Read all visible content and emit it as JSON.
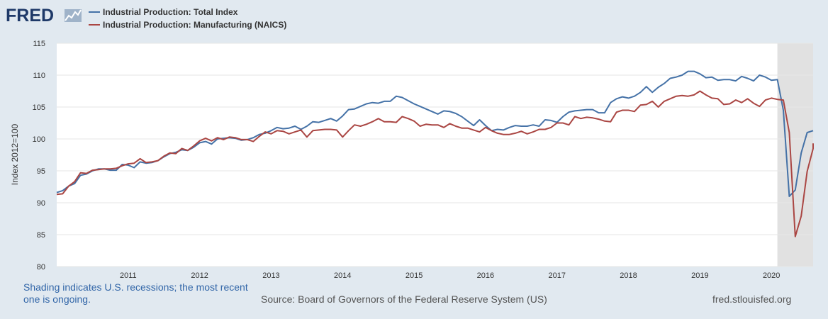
{
  "brand": {
    "name": "FRED"
  },
  "footer": {
    "note": "Shading indicates U.S. recessions; the most recent one is ongoing.",
    "source": "Source: Board of Governors of the Federal Reserve System (US)",
    "site": "fred.stlouisfed.org"
  },
  "colors": {
    "total": "#4572a7",
    "manufacturing": "#aa4643",
    "recession": "#e1e1e1",
    "grid": "#e6e6e6"
  },
  "chart_data": {
    "type": "line",
    "title": "",
    "xlabel": "",
    "ylabel": "Index 2012=100",
    "ylim": [
      80,
      115
    ],
    "yticks": [
      80,
      85,
      90,
      95,
      100,
      105,
      110,
      115
    ],
    "xlim": [
      2010.0,
      2020.5833
    ],
    "xticks": [
      2011,
      2012,
      2013,
      2014,
      2015,
      2016,
      2017,
      2018,
      2019,
      2020
    ],
    "x_start": 2010.0,
    "x_step": 0.083333,
    "recession": {
      "start": 2020.0833,
      "end": 2020.5833
    },
    "legend_position": "top-left",
    "series": [
      {
        "name": "Industrial Production: Total Index",
        "key": "total",
        "values": [
          91.6,
          91.9,
          92.6,
          93.0,
          94.3,
          94.5,
          95.0,
          95.3,
          95.3,
          95.1,
          95.1,
          96.0,
          95.9,
          95.5,
          96.4,
          96.2,
          96.3,
          96.6,
          97.2,
          97.7,
          97.9,
          98.3,
          98.2,
          98.7,
          99.4,
          99.6,
          99.2,
          100.0,
          100.1,
          100.2,
          100.1,
          99.8,
          99.9,
          100.2,
          100.7,
          100.9,
          101.3,
          101.8,
          101.6,
          101.7,
          102.0,
          101.5,
          102.0,
          102.7,
          102.6,
          102.9,
          103.2,
          102.8,
          103.6,
          104.6,
          104.7,
          105.1,
          105.5,
          105.7,
          105.6,
          105.9,
          105.9,
          106.7,
          106.5,
          106.0,
          105.5,
          105.1,
          104.7,
          104.3,
          103.9,
          104.4,
          104.3,
          104.0,
          103.5,
          102.8,
          102.1,
          103.0,
          102.1,
          101.3,
          101.5,
          101.4,
          101.8,
          102.1,
          102.0,
          102.0,
          102.2,
          102.0,
          103.0,
          102.9,
          102.6,
          103.5,
          104.2,
          104.4,
          104.5,
          104.6,
          104.6,
          104.1,
          104.1,
          105.7,
          106.3,
          106.6,
          106.4,
          106.7,
          107.3,
          108.2,
          107.3,
          108.1,
          108.7,
          109.5,
          109.7,
          110.0,
          110.6,
          110.6,
          110.2,
          109.6,
          109.7,
          109.2,
          109.3,
          109.3,
          109.1,
          109.8,
          109.5,
          109.1,
          110.0,
          109.7,
          109.2,
          109.3,
          104.5,
          91.0,
          92.0,
          97.8,
          101.0,
          101.3
        ]
      },
      {
        "name": "Industrial Production: Manufacturing (NAICS)",
        "key": "manufacturing",
        "values": [
          91.3,
          91.4,
          92.6,
          93.3,
          94.7,
          94.6,
          95.1,
          95.2,
          95.3,
          95.3,
          95.4,
          95.8,
          96.1,
          96.2,
          96.9,
          96.3,
          96.4,
          96.6,
          97.3,
          97.8,
          97.7,
          98.5,
          98.2,
          98.9,
          99.7,
          100.1,
          99.7,
          100.2,
          99.9,
          100.3,
          100.2,
          99.9,
          99.9,
          99.6,
          100.4,
          101.1,
          100.8,
          101.3,
          101.2,
          100.8,
          101.1,
          101.4,
          100.3,
          101.3,
          101.4,
          101.5,
          101.5,
          101.4,
          100.3,
          101.3,
          102.2,
          102.0,
          102.3,
          102.7,
          103.2,
          102.7,
          102.7,
          102.6,
          103.5,
          103.2,
          102.8,
          102.0,
          102.3,
          102.2,
          102.2,
          101.8,
          102.4,
          102.0,
          101.7,
          101.7,
          101.4,
          101.1,
          101.8,
          101.3,
          100.9,
          100.7,
          100.7,
          100.9,
          101.2,
          100.8,
          101.1,
          101.5,
          101.5,
          101.8,
          102.5,
          102.5,
          102.2,
          103.5,
          103.2,
          103.4,
          103.3,
          103.1,
          102.8,
          102.7,
          104.2,
          104.5,
          104.5,
          104.3,
          105.3,
          105.4,
          105.9,
          105.0,
          105.9,
          106.3,
          106.7,
          106.8,
          106.7,
          106.9,
          107.5,
          106.9,
          106.4,
          106.3,
          105.4,
          105.5,
          106.1,
          105.7,
          106.3,
          105.6,
          105.1,
          106.1,
          106.4,
          106.2,
          106.1,
          101.0,
          84.7,
          87.9,
          94.9,
          98.5,
          99.3
        ]
      }
    ]
  }
}
